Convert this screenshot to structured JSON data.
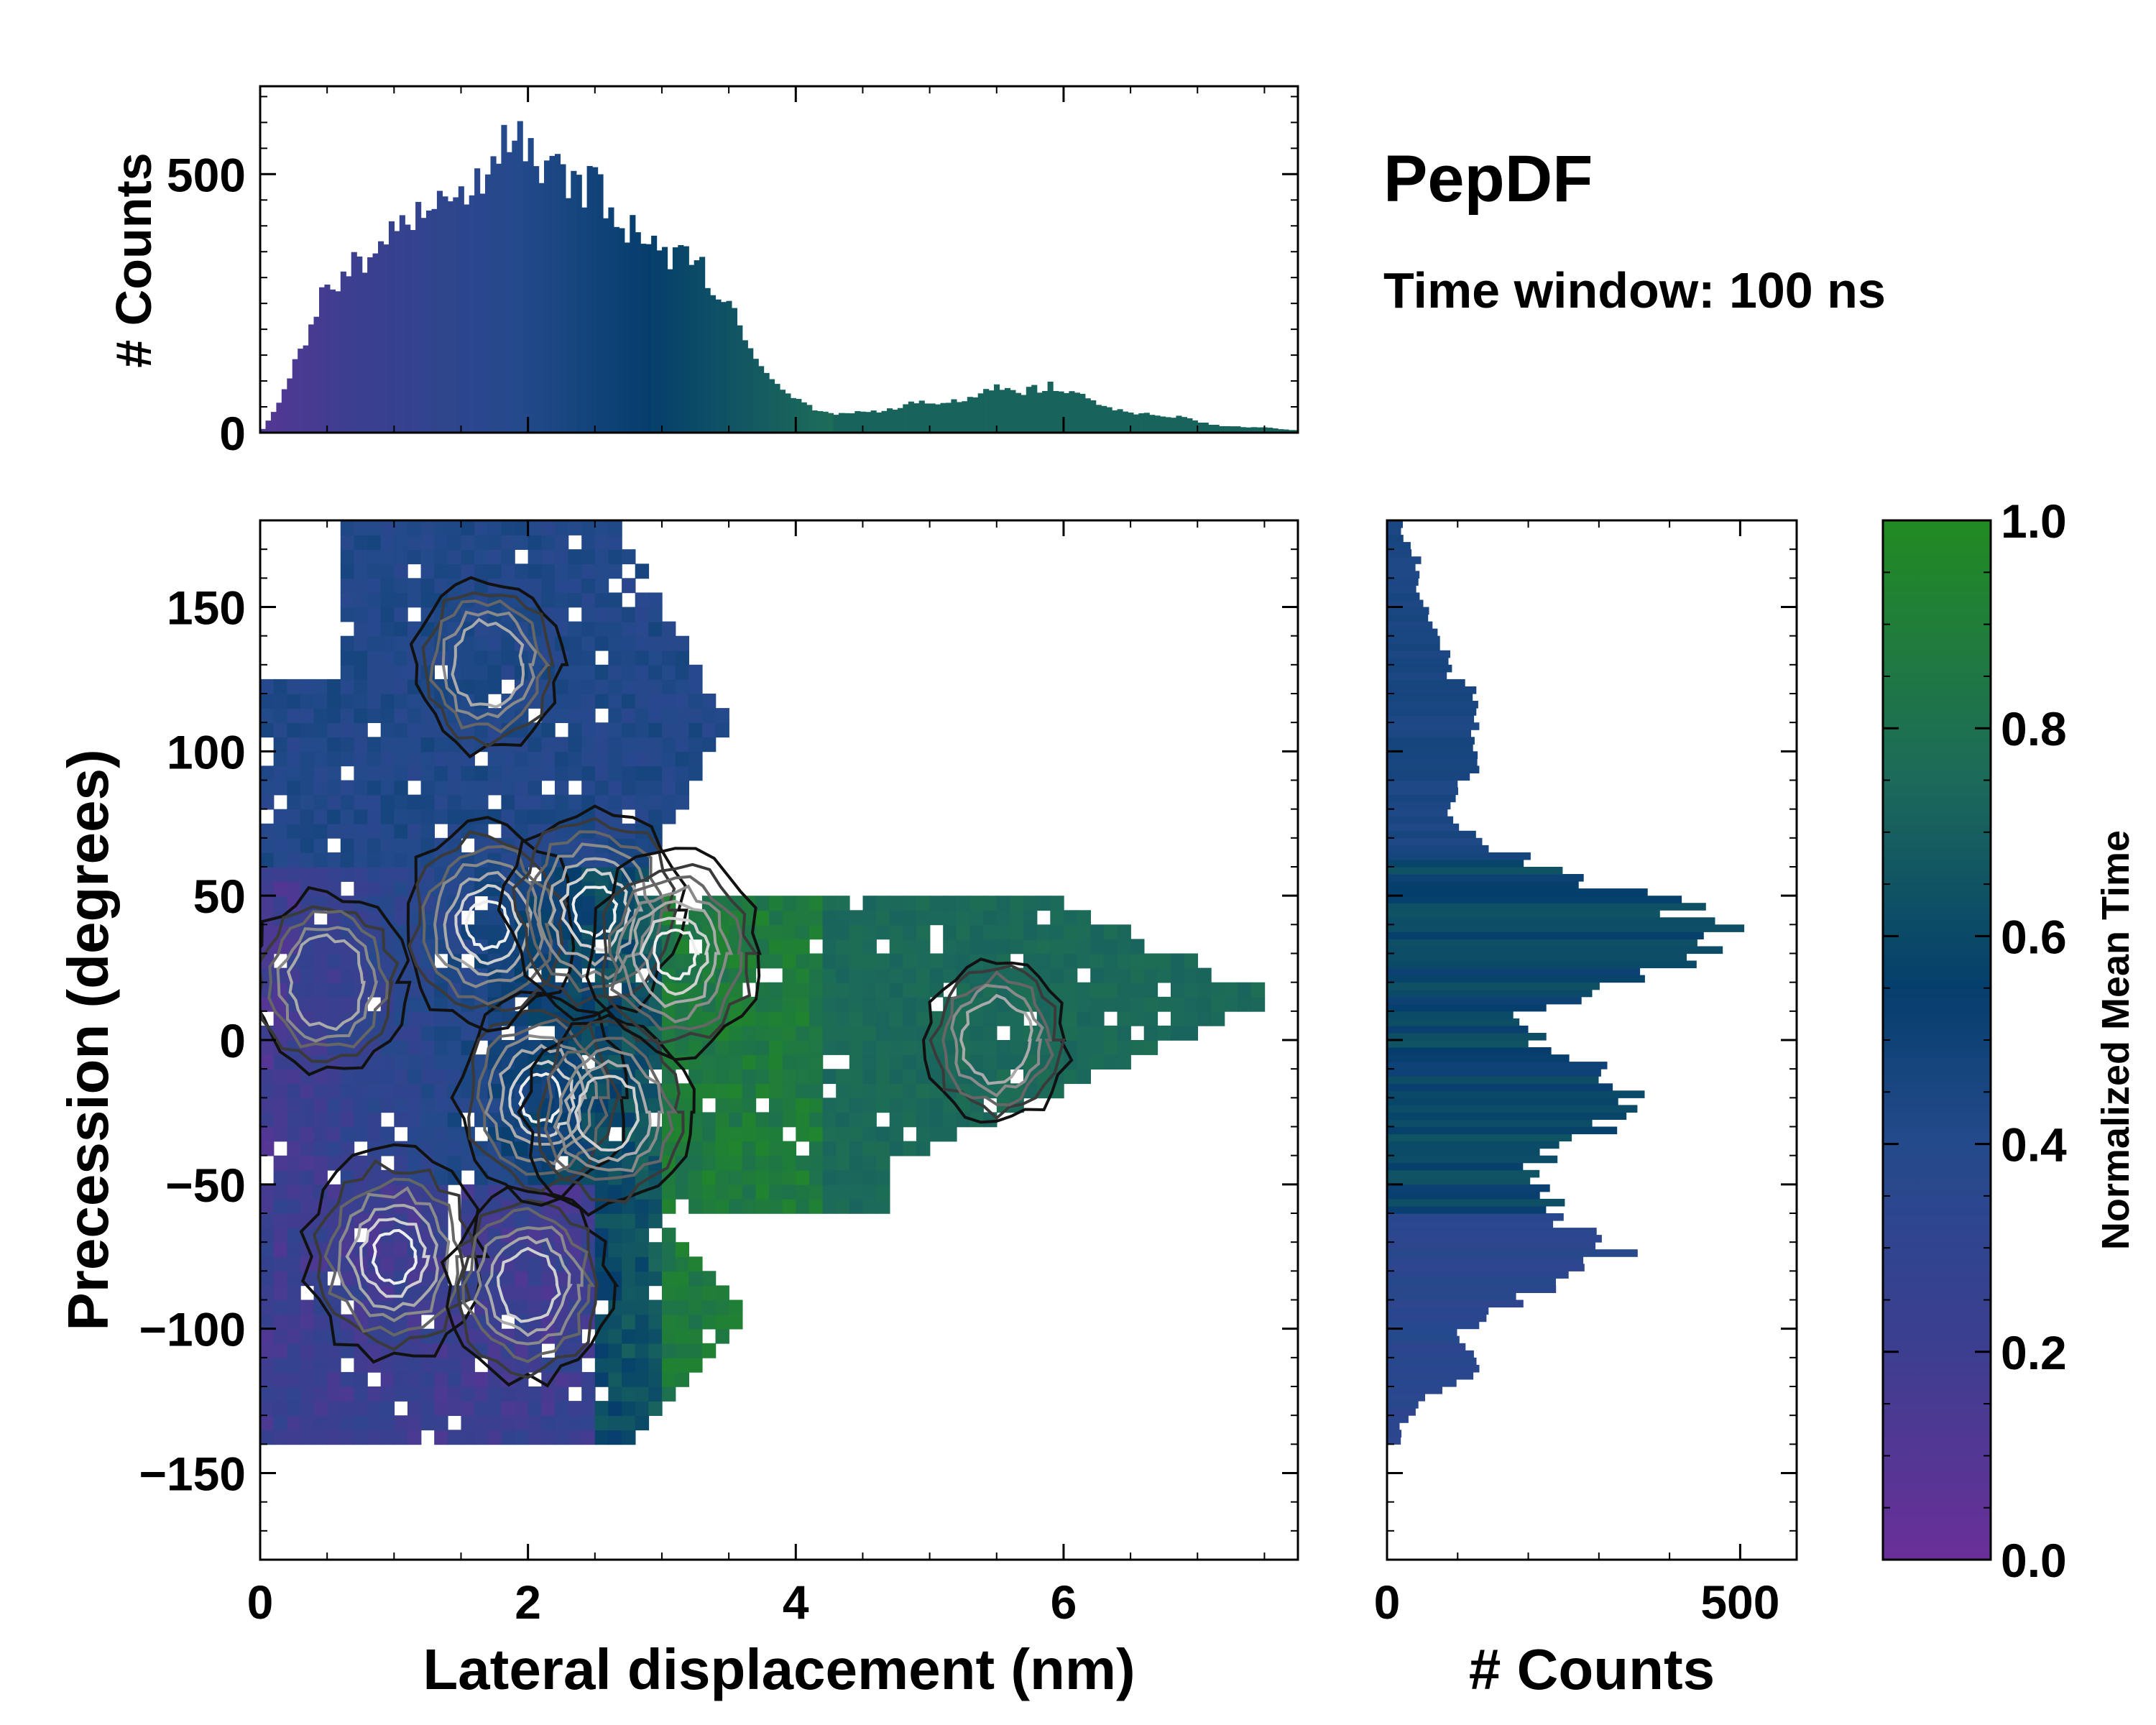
{
  "title": "PepDF",
  "subtitle": "Time window: 100 ns",
  "chart_data": [
    {
      "type": "heatmap",
      "name": "joint-distribution",
      "xlabel": "Lateral displacement (nm)",
      "ylabel": "Precession (degrees)",
      "xlim": [
        0,
        7.75
      ],
      "ylim": [
        -180,
        180
      ],
      "xticks": [
        0,
        2,
        4,
        6
      ],
      "yticks": [
        -150,
        -100,
        -50,
        0,
        50,
        100,
        150
      ],
      "xtick_labels": [
        "0",
        "2",
        "4",
        "6"
      ],
      "ytick_labels": [
        "−150",
        "−100",
        "−50",
        "0",
        "50",
        "100",
        "150"
      ],
      "color_meaning": "Normalized Mean Time",
      "density_clusters": [
        {
          "x": 1.0,
          "y": -75,
          "weight": 1.0
        },
        {
          "x": 2.0,
          "y": -85,
          "weight": 0.8
        },
        {
          "x": 2.1,
          "y": -20,
          "weight": 0.9
        },
        {
          "x": 2.6,
          "y": -25,
          "weight": 0.8
        },
        {
          "x": 1.7,
          "y": 40,
          "weight": 0.9
        },
        {
          "x": 2.5,
          "y": 45,
          "weight": 1.0
        },
        {
          "x": 3.1,
          "y": 30,
          "weight": 0.95
        },
        {
          "x": 0.5,
          "y": 20,
          "weight": 0.6
        },
        {
          "x": 1.7,
          "y": 130,
          "weight": 0.5
        },
        {
          "x": 5.5,
          "y": 0,
          "weight": 0.4
        }
      ]
    },
    {
      "type": "bar",
      "name": "top-histogram",
      "ylabel": "# Counts",
      "ylim": [
        0,
        670
      ],
      "yticks": [
        0,
        500
      ],
      "ytick_labels": [
        "0",
        "500"
      ],
      "xlim": [
        0,
        7.75
      ],
      "x": [
        0.1,
        0.3,
        0.5,
        0.7,
        0.9,
        1.1,
        1.3,
        1.5,
        1.7,
        1.8,
        1.9,
        2.1,
        2.3,
        2.5,
        2.7,
        2.9,
        3.1,
        3.3,
        3.5,
        3.7,
        3.9,
        4.1,
        4.3,
        4.5,
        4.7,
        4.9,
        5.1,
        5.3,
        5.5,
        5.7,
        5.9,
        6.1,
        6.3,
        6.5,
        6.7,
        6.9,
        7.1,
        7.3,
        7.5,
        7.7
      ],
      "values": [
        40,
        160,
        280,
        320,
        360,
        390,
        430,
        450,
        500,
        570,
        600,
        530,
        490,
        470,
        400,
        360,
        340,
        310,
        240,
        140,
        80,
        50,
        35,
        40,
        45,
        60,
        55,
        70,
        85,
        80,
        90,
        75,
        50,
        40,
        35,
        30,
        15,
        12,
        10,
        5
      ]
    },
    {
      "type": "bar",
      "name": "right-histogram",
      "orientation": "horizontal",
      "xlabel": "# Counts",
      "xlim": [
        0,
        580
      ],
      "xticks": [
        0,
        500
      ],
      "xtick_labels": [
        "0",
        "500"
      ],
      "ylim": [
        -180,
        180
      ],
      "y": [
        175,
        165,
        155,
        145,
        135,
        125,
        115,
        105,
        95,
        85,
        75,
        65,
        55,
        45,
        35,
        25,
        15,
        5,
        -5,
        -15,
        -25,
        -35,
        -45,
        -55,
        -65,
        -75,
        -85,
        -95,
        -105,
        -115,
        -125,
        -135
      ],
      "values": [
        20,
        45,
        40,
        60,
        80,
        90,
        140,
        110,
        130,
        100,
        90,
        160,
        270,
        410,
        500,
        420,
        280,
        170,
        240,
        330,
        330,
        280,
        200,
        230,
        250,
        320,
        240,
        150,
        100,
        130,
        60,
        20
      ]
    },
    {
      "type": "colorbar",
      "name": "colorbar",
      "label": "Normalized Mean Time",
      "ylim": [
        0.0,
        1.0
      ],
      "ticks": [
        0.0,
        0.2,
        0.4,
        0.6,
        0.8,
        1.0
      ],
      "tick_labels": [
        "0.0",
        "0.2",
        "0.4",
        "0.6",
        "0.8",
        "1.0"
      ],
      "colors": [
        "#6a2f99",
        "#3d3e8f",
        "#244a8c",
        "#053e6c",
        "#1c6a5a",
        "#228b22"
      ]
    }
  ]
}
